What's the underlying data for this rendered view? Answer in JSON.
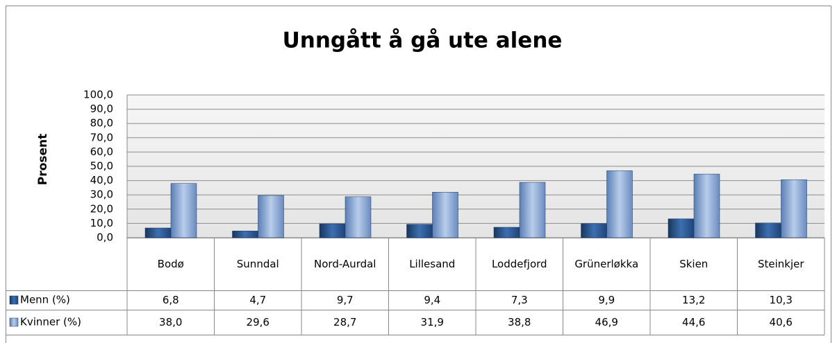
{
  "chart_data": {
    "type": "bar",
    "title": "Unngått å gå ute alene",
    "ylabel": "Prosent",
    "categories": [
      "Bodø",
      "Sunndal",
      "Nord-Aurdal",
      "Lillesand",
      "Loddefjord",
      "Grünerløkka",
      "Skien",
      "Steinkjer"
    ],
    "series": [
      {
        "name": "Menn (%)",
        "color": "#2e5f9e",
        "values": [
          6.8,
          4.7,
          9.7,
          9.4,
          7.3,
          9.9,
          13.2,
          10.3
        ],
        "value_labels": [
          "6,8",
          "4,7",
          "9,7",
          "9,4",
          "7,3",
          "9,9",
          "13,2",
          "10,3"
        ]
      },
      {
        "name": "Kvinner (%)",
        "color": "#8eaedb",
        "values": [
          38.0,
          29.6,
          28.7,
          31.9,
          38.8,
          46.9,
          44.6,
          40.6
        ],
        "value_labels": [
          "38,0",
          "29,6",
          "28,7",
          "31,9",
          "38,8",
          "46,9",
          "44,6",
          "40,6"
        ]
      }
    ],
    "ylim": [
      0,
      100
    ],
    "yticks": [
      {
        "value": 0,
        "label": "0,0"
      },
      {
        "value": 10,
        "label": "10,0"
      },
      {
        "value": 20,
        "label": "20,0"
      },
      {
        "value": 30,
        "label": "30,0"
      },
      {
        "value": 40,
        "label": "40,0"
      },
      {
        "value": 50,
        "label": "50,0"
      },
      {
        "value": 60,
        "label": "60,0"
      },
      {
        "value": 70,
        "label": "70,0"
      },
      {
        "value": 80,
        "label": "80,0"
      },
      {
        "value": 90,
        "label": "90,0"
      },
      {
        "value": 100,
        "label": "100,0"
      }
    ],
    "grid": true,
    "legend": "table"
  }
}
